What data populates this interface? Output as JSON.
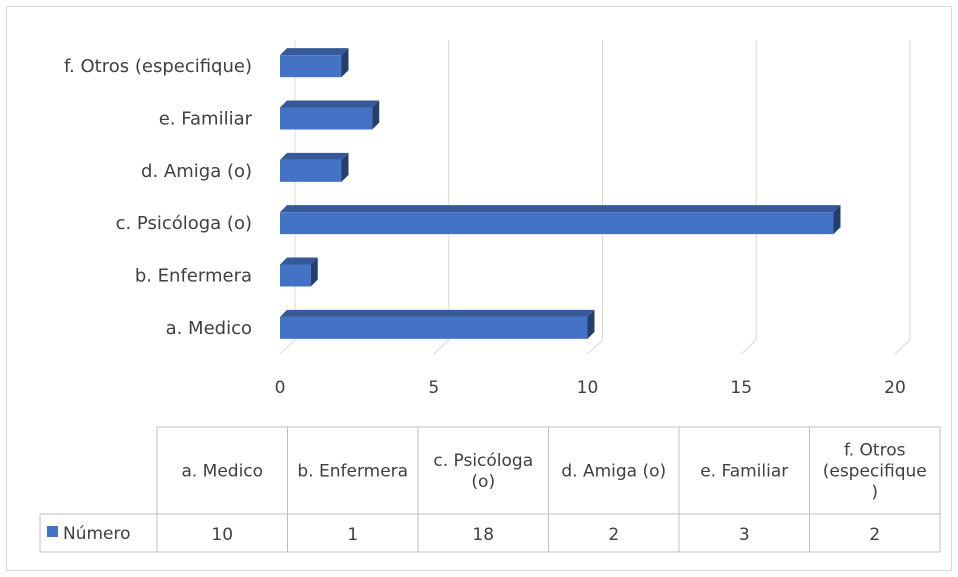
{
  "chart_data": {
    "type": "bar",
    "orientation": "horizontal",
    "categories": [
      "a. Medico",
      "b. Enfermera",
      "c. Psicóloga (o)",
      "d. Amiga (o)",
      "e. Familiar",
      "f. Otros (especifique)"
    ],
    "table_headers": [
      "a. Medico",
      "b. Enfermera",
      "c. Psicóloga (o)",
      "d. Amiga (o)",
      "e. Familiar",
      "f. Otros (especifique )"
    ],
    "series": [
      {
        "name": "Número",
        "values": [
          10,
          1,
          18,
          2,
          3,
          2
        ],
        "color": "#4472c4"
      }
    ],
    "x_ticks": [
      "0",
      "5",
      "10",
      "15",
      "20"
    ],
    "xlim": [
      0,
      20
    ],
    "grid": true,
    "data_table": true
  }
}
